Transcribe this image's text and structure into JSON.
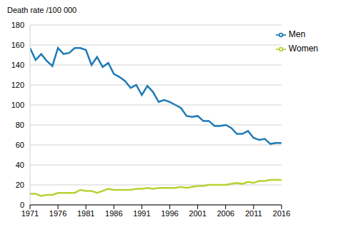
{
  "chart_data": {
    "type": "line",
    "y_label": "Death rate /100 000",
    "x": [
      1971,
      1972,
      1973,
      1974,
      1975,
      1976,
      1977,
      1978,
      1979,
      1980,
      1981,
      1982,
      1983,
      1984,
      1985,
      1986,
      1987,
      1988,
      1989,
      1990,
      1991,
      1992,
      1993,
      1994,
      1995,
      1996,
      1997,
      1998,
      1999,
      2000,
      2001,
      2002,
      2003,
      2004,
      2005,
      2006,
      2007,
      2008,
      2009,
      2010,
      2011,
      2012,
      2013,
      2014,
      2015,
      2016
    ],
    "series": [
      {
        "name": "Men",
        "color": "#1f7bb6",
        "values": [
          157,
          145,
          151,
          144,
          139,
          157,
          151,
          152,
          157,
          157,
          155,
          140,
          148,
          138,
          142,
          131,
          128,
          124,
          117,
          120,
          110,
          119,
          113,
          103,
          105,
          103,
          100,
          97,
          89,
          88,
          89,
          84,
          84,
          79,
          79,
          80,
          77,
          71,
          71,
          74,
          67,
          65,
          66,
          61,
          62,
          62
        ]
      },
      {
        "name": "Women",
        "color": "#b5d334",
        "values": [
          11,
          11,
          9,
          10,
          10,
          12,
          12,
          12,
          12,
          15,
          14,
          14,
          12,
          14,
          16,
          15,
          15,
          15,
          15,
          16,
          16,
          17,
          16,
          17,
          17,
          17,
          17,
          18,
          17,
          18,
          19,
          19,
          20,
          20,
          20,
          20,
          21,
          22,
          21,
          23,
          22,
          24,
          24,
          25,
          25,
          25
        ]
      }
    ],
    "xlim": [
      1971,
      2016
    ],
    "xticks": [
      1971,
      1976,
      1981,
      1986,
      1991,
      1996,
      2001,
      2006,
      2011,
      2016
    ],
    "ylim": [
      0,
      180
    ],
    "yticks": [
      0,
      20,
      40,
      60,
      80,
      100,
      120,
      140,
      160,
      180
    ],
    "grid": true,
    "legend": "upper right"
  }
}
